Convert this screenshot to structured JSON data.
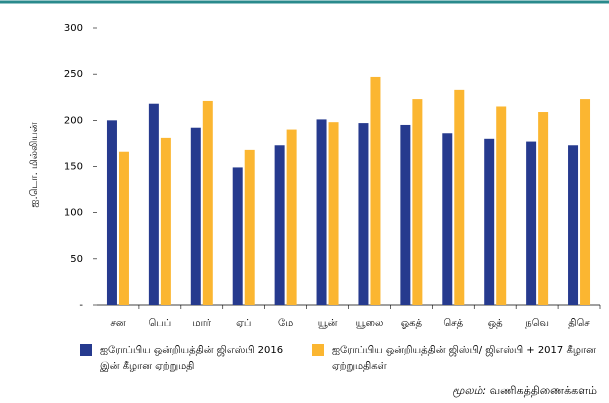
{
  "chart_data": {
    "type": "bar",
    "y_label": "ஐ.டொ. மில்லியன்",
    "categories": [
      "சன",
      "பெப்",
      "மார்",
      "ஏப்",
      "மே",
      "யூன்",
      "யூலை",
      "ஓகத்",
      "செத்",
      "ஒத்",
      "நவெ",
      "திசெ"
    ],
    "series": [
      {
        "name": "ஐரோப்பிய ஒன்றியத்தின் ஜிஎஸ்பி 2016 இன் கீழான ஏற்றுமதி",
        "color": "#263a8e",
        "values": [
          200,
          218,
          192,
          149,
          173,
          201,
          197,
          195,
          186,
          180,
          177,
          173
        ]
      },
      {
        "name": "ஐரோப்பிய ஒன்றியத்தின் ஜிஸ்பி/ ஜிஎஸ்பி + 2017 கீழான ஏற்றுமதிகள்",
        "color": "#fbb631",
        "values": [
          166,
          181,
          221,
          168,
          190,
          198,
          247,
          223,
          233,
          215,
          209,
          223
        ]
      }
    ],
    "ylim": [
      0,
      300
    ],
    "yticks": [
      {
        "value": 0,
        "label": "-"
      },
      50,
      100,
      150,
      200,
      250,
      300
    ],
    "source_label": "மூலம்:",
    "source": "வணிகத்திணைக்களம்"
  }
}
